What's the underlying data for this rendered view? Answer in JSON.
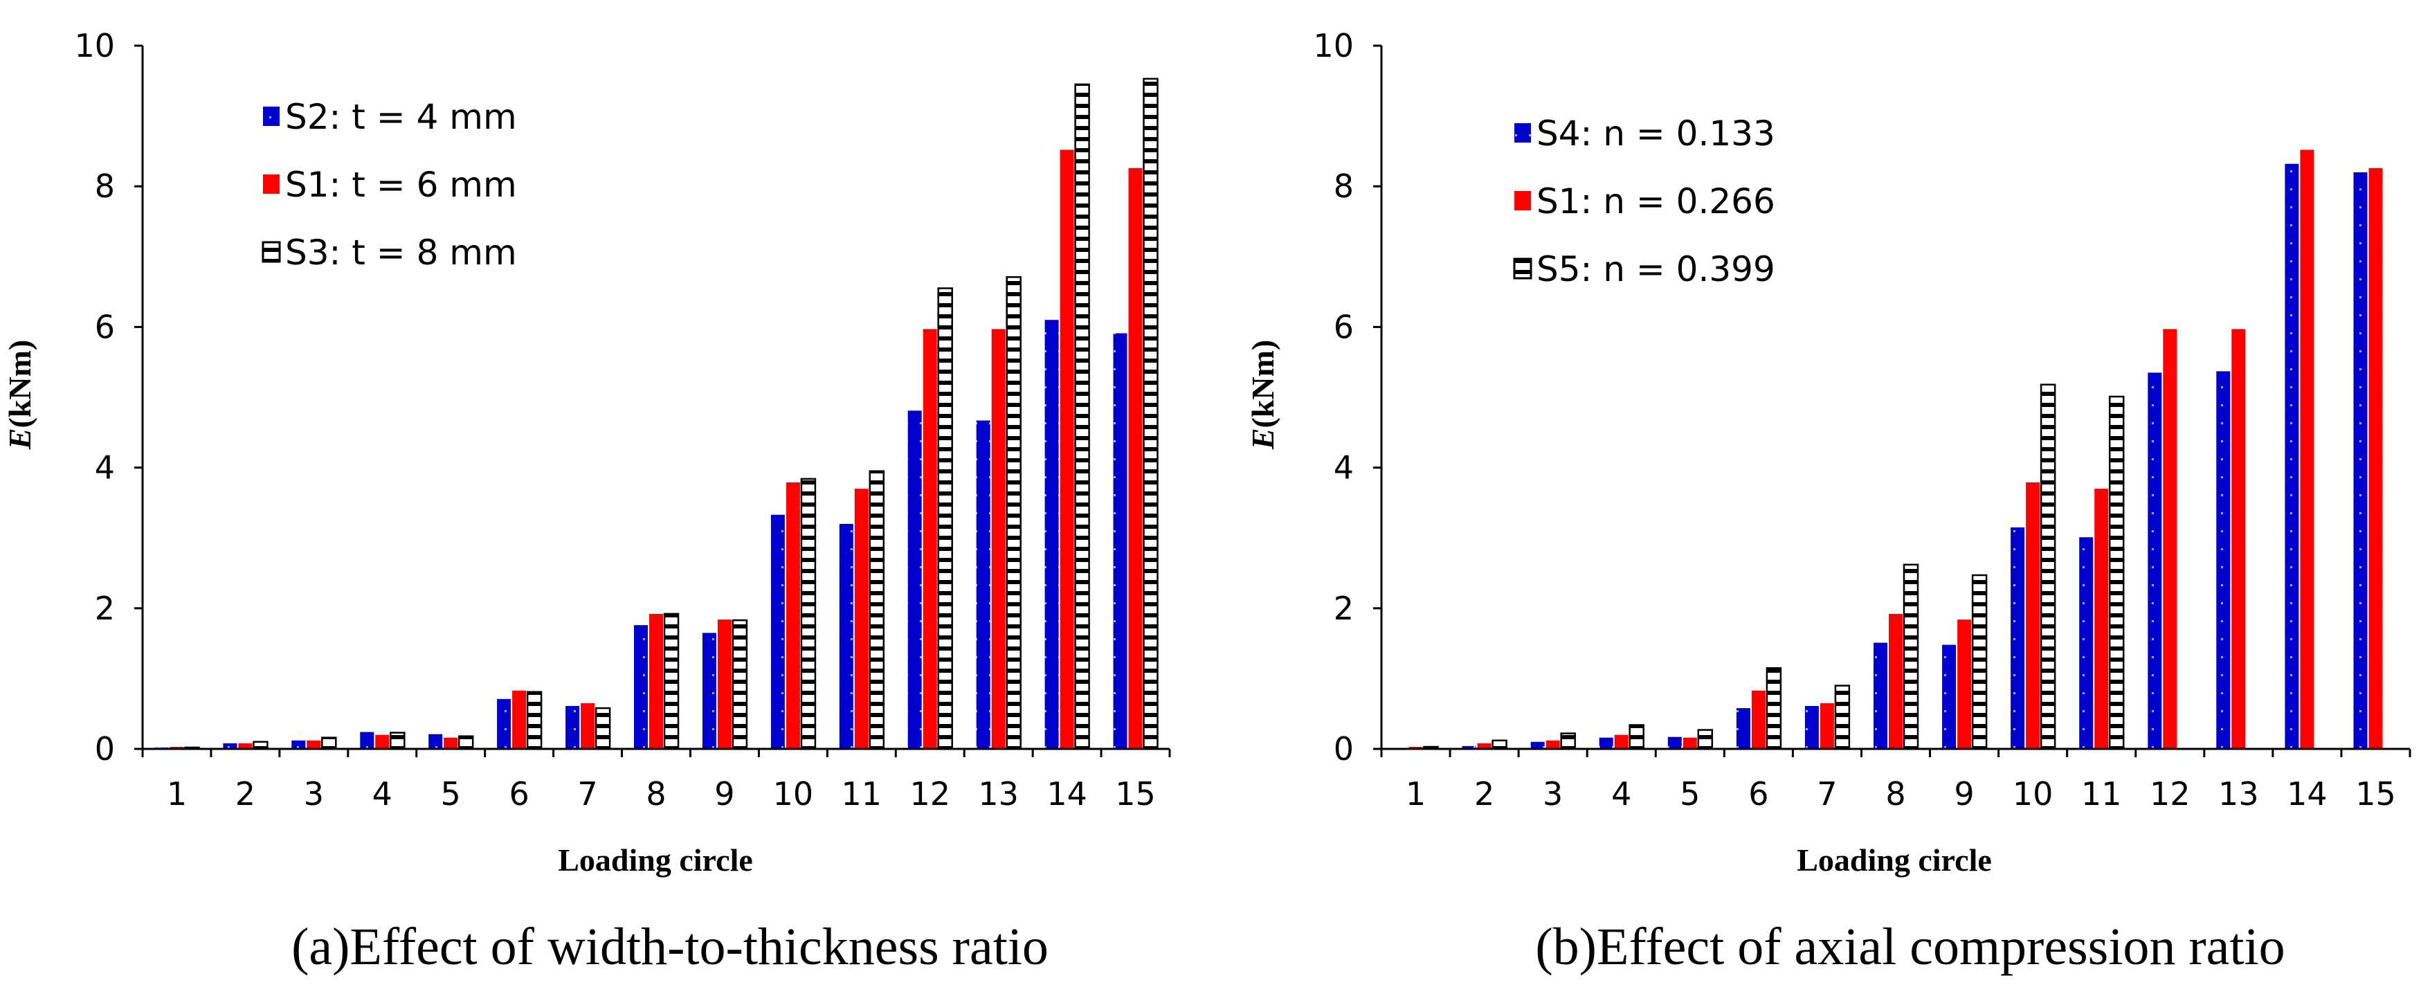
{
  "colors": {
    "blue": "#0000cc",
    "red": "#ff0000",
    "hatch_stroke": "#000000",
    "hatch_fill": "#ffffff",
    "axis": "#000000"
  },
  "chart_data": [
    {
      "type": "bar",
      "caption": "(a)Effect of width-to-thickness ratio",
      "xlabel": "Loading circle",
      "ylabel_italic": "E",
      "ylabel_rest": "(kNm)",
      "ylim": [
        0,
        10
      ],
      "yticks": [
        "0",
        "2",
        "4",
        "6",
        "8",
        "10"
      ],
      "categories": [
        "1",
        "2",
        "3",
        "4",
        "5",
        "6",
        "7",
        "8",
        "9",
        "10",
        "11",
        "12",
        "13",
        "14",
        "15"
      ],
      "series": [
        {
          "name": "S2",
          "legend_label": "S2:  t = 4 mm",
          "style": "blue",
          "values": [
            0.02,
            0.08,
            0.12,
            0.24,
            0.21,
            0.71,
            0.61,
            1.76,
            1.65,
            3.33,
            3.2,
            4.81,
            4.67,
            6.1,
            5.91
          ]
        },
        {
          "name": "S1",
          "legend_label": "S1:  t = 6 mm",
          "style": "red",
          "values": [
            0.03,
            0.08,
            0.12,
            0.2,
            0.16,
            0.83,
            0.65,
            1.92,
            1.84,
            3.79,
            3.7,
            5.97,
            5.97,
            8.52,
            8.26
          ]
        },
        {
          "name": "S3",
          "legend_label": "S3:  t = 8 mm",
          "style": "hatched",
          "values": [
            0.02,
            0.1,
            0.16,
            0.23,
            0.18,
            0.81,
            0.58,
            1.92,
            1.83,
            3.84,
            3.95,
            6.55,
            6.71,
            9.45,
            9.53
          ]
        }
      ]
    },
    {
      "type": "bar",
      "caption": "(b)Effect of axial compression ratio",
      "xlabel": "Loading circle",
      "ylabel_italic": "E",
      "ylabel_rest": "(kNm)",
      "ylim": [
        0,
        10
      ],
      "yticks": [
        "0",
        "2",
        "4",
        "6",
        "8",
        "10"
      ],
      "categories": [
        "1",
        "2",
        "3",
        "4",
        "5",
        "6",
        "7",
        "8",
        "9",
        "10",
        "11",
        "12",
        "13",
        "14",
        "15"
      ],
      "series": [
        {
          "name": "S4",
          "legend_label": "S4:  n = 0.133",
          "style": "blue",
          "values": [
            0.01,
            0.04,
            0.1,
            0.16,
            0.17,
            0.58,
            0.61,
            1.51,
            1.48,
            3.15,
            3.01,
            5.35,
            5.37,
            8.32,
            8.2
          ]
        },
        {
          "name": "S1",
          "legend_label": "S1:  n = 0.266",
          "style": "red",
          "values": [
            0.03,
            0.08,
            0.12,
            0.2,
            0.16,
            0.83,
            0.65,
            1.92,
            1.84,
            3.79,
            3.7,
            5.97,
            5.97,
            8.52,
            8.26
          ]
        },
        {
          "name": "S5",
          "legend_label": "S5:  n = 0.399",
          "style": "hatched",
          "values": [
            0.03,
            0.12,
            0.22,
            0.34,
            0.27,
            1.15,
            0.9,
            2.62,
            2.47,
            5.18,
            5.01,
            null,
            null,
            null,
            null
          ]
        }
      ]
    }
  ]
}
